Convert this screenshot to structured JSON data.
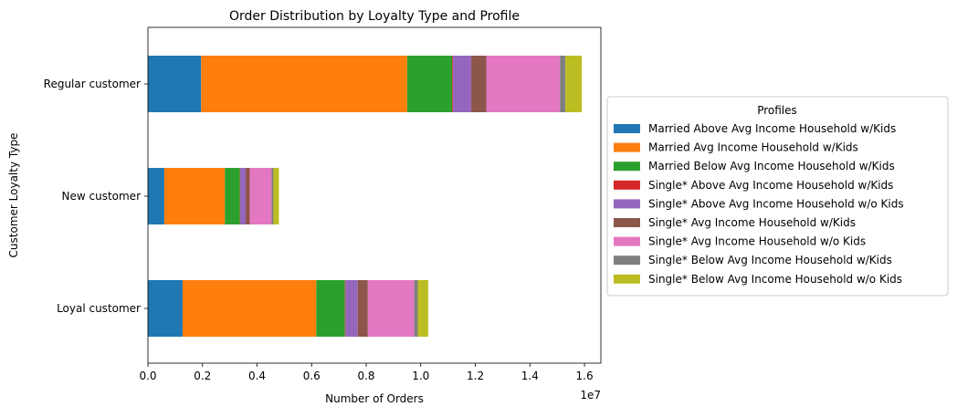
{
  "chart_data": {
    "type": "bar",
    "orientation": "horizontal",
    "stacked": true,
    "title": "Order Distribution by Loyalty Type and Profile",
    "xlabel": "Number of Orders",
    "ylabel": "Customer Loyalty Type",
    "x_offset_label": "1e7",
    "xlim": [
      0,
      16600000
    ],
    "xticks": [
      0,
      2000000,
      4000000,
      6000000,
      8000000,
      10000000,
      12000000,
      14000000,
      16000000
    ],
    "xtick_labels": [
      "0.0",
      "0.2",
      "0.4",
      "0.6",
      "0.8",
      "1.0",
      "1.2",
      "1.4",
      "1.6"
    ],
    "categories": [
      "Regular customer",
      "New customer",
      "Loyal customer"
    ],
    "legend": {
      "title": "Profiles",
      "placement": "right-outside"
    },
    "series": [
      {
        "name": "Married Above Avg Income Household w/Kids",
        "color": "#1f77b4",
        "values": [
          1950000,
          600000,
          1270000
        ]
      },
      {
        "name": "Married Avg Income Household w/Kids",
        "color": "#ff7f0e",
        "values": [
          7550000,
          2220000,
          4900000
        ]
      },
      {
        "name": "Married Below Avg Income Household w/Kids",
        "color": "#2ca02c",
        "values": [
          1650000,
          550000,
          1050000
        ]
      },
      {
        "name": "Single* Above Avg Income Household w/Kids",
        "color": "#d62728",
        "values": [
          30000,
          10000,
          20000
        ]
      },
      {
        "name": "Single* Above Avg Income Household w/o Kids",
        "color": "#9467bd",
        "values": [
          670000,
          200000,
          450000
        ]
      },
      {
        "name": "Single* Avg Income Household w/Kids",
        "color": "#8c564b",
        "values": [
          550000,
          150000,
          370000
        ]
      },
      {
        "name": "Single* Avg Income Household w/o Kids",
        "color": "#e377c2",
        "values": [
          2700000,
          800000,
          1700000
        ]
      },
      {
        "name": "Single* Below Avg Income Household w/Kids",
        "color": "#7f7f7f",
        "values": [
          200000,
          70000,
          130000
        ]
      },
      {
        "name": "Single* Below Avg Income Household w/o Kids",
        "color": "#bcbd22",
        "values": [
          600000,
          200000,
          380000
        ]
      }
    ]
  }
}
